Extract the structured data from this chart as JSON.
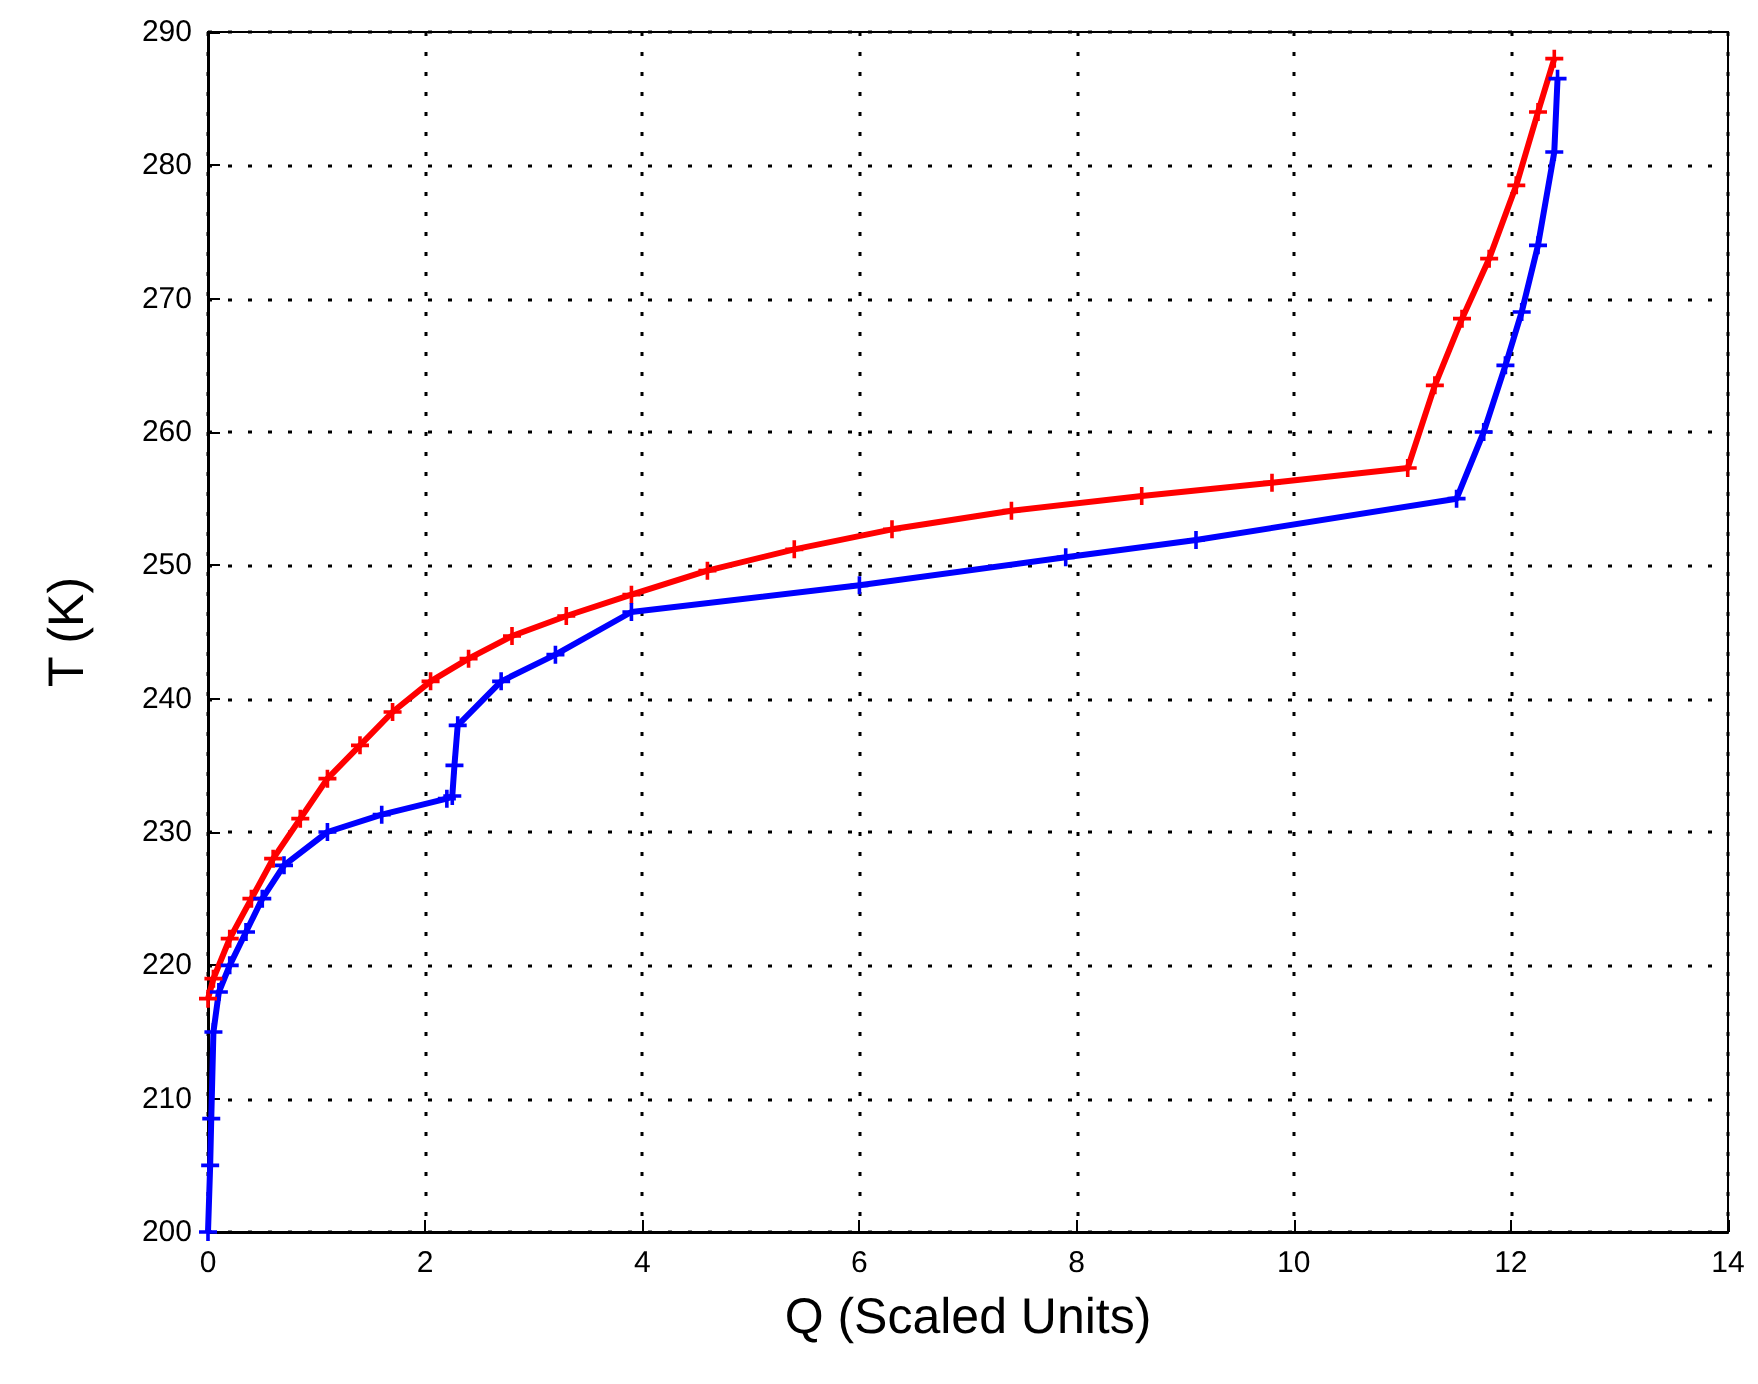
{
  "chart_data": {
    "type": "line",
    "xlabel": "Q (Scaled Units)",
    "ylabel": "T (K)",
    "xlim": [
      0,
      14
    ],
    "ylim": [
      200,
      290
    ],
    "xticks": [
      0,
      2,
      4,
      6,
      8,
      10,
      12,
      14
    ],
    "yticks": [
      200,
      210,
      220,
      230,
      240,
      250,
      260,
      270,
      280,
      290
    ],
    "grid": true,
    "marker": "cross",
    "line_style": "solid",
    "series": [
      {
        "color": "#ff0000",
        "x": [
          0,
          0.05,
          0.2,
          0.4,
          0.6,
          0.85,
          1.1,
          1.4,
          1.7,
          2.05,
          2.4,
          2.8,
          3.3,
          3.9,
          4.6,
          5.4,
          6.3,
          7.4,
          8.6,
          9.8,
          11.05,
          11.3,
          11.55,
          11.8,
          12.05,
          12.25,
          12.4
        ],
        "values": [
          217.5,
          219,
          222,
          225,
          228,
          231,
          234,
          236.5,
          239,
          241.3,
          243,
          244.7,
          246.2,
          247.8,
          249.6,
          251.2,
          252.7,
          254.1,
          255.2,
          256.2,
          257.3,
          263.5,
          268.5,
          273,
          278.5,
          284,
          288
        ]
      },
      {
        "color": "#0000ff",
        "x": [
          0,
          0.02,
          0.03,
          0.05,
          0.1,
          0.2,
          0.35,
          0.5,
          0.7,
          1.1,
          1.6,
          2.2,
          2.25,
          2.27,
          2.3,
          2.7,
          3.2,
          3.9,
          6,
          7.9,
          9.1,
          11.5,
          11.75,
          11.95,
          12.1,
          12.25,
          12.4,
          12.43
        ],
        "values": [
          200,
          205,
          208.5,
          215,
          218,
          220,
          222.5,
          225,
          227.5,
          230,
          231.3,
          232.5,
          232.7,
          235,
          238,
          241.3,
          243.3,
          246.5,
          248.5,
          250.6,
          251.9,
          255,
          260,
          265,
          269,
          274,
          281,
          286.5
        ]
      }
    ]
  }
}
